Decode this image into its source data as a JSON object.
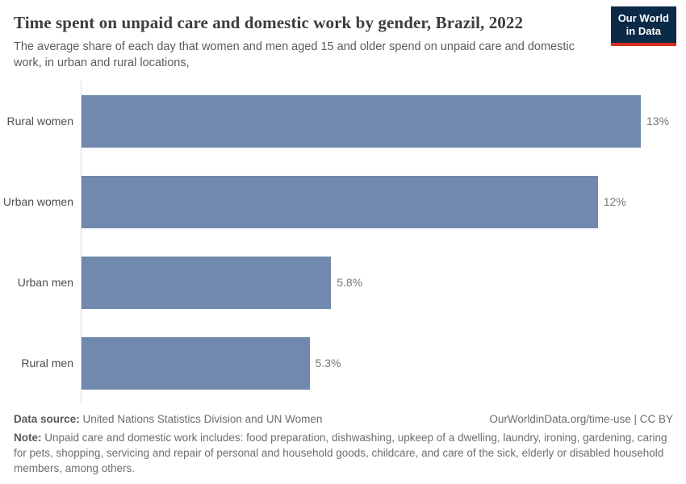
{
  "header": {
    "title": "Time spent on unpaid care and domestic work by gender, Brazil, 2022",
    "subtitle": "The average share of each day that women and men aged 15 and older spend on unpaid care and domestic work, in urban and rural locations,",
    "logo": {
      "line1": "Our World",
      "line2": "in Data"
    }
  },
  "chart_data": {
    "type": "bar",
    "orientation": "horizontal",
    "title": "Time spent on unpaid care and domestic work by gender, Brazil, 2022",
    "categories": [
      "Rural women",
      "Urban women",
      "Urban men",
      "Rural men"
    ],
    "values": [
      13,
      12,
      5.8,
      5.3
    ],
    "value_labels": [
      "13%",
      "12%",
      "5.8%",
      "5.3%"
    ],
    "unit": "%",
    "xlabel": "",
    "ylabel": "",
    "xlim": [
      0,
      13.75
    ],
    "grid": false,
    "legend": "none"
  },
  "footer": {
    "source_label": "Data source:",
    "source_text": "United Nations Statistics Division and UN Women",
    "license": "OurWorldinData.org/time-use | CC BY",
    "note_label": "Note:",
    "note_text": "Unpaid care and domestic work includes: food preparation, dishwashing, upkeep of a dwelling, laundry, ironing, gardening, caring for pets, shopping, servicing and repair of personal and household goods, childcare, and care of the sick, elderly or disabled household members, among others."
  },
  "colors": {
    "bar": "#7289ae",
    "logo_bg": "#0b2a48",
    "logo_accent": "#d42b22",
    "axis_line": "#dcdcdc",
    "title_text": "#3d3d3d",
    "body_text": "#5b5b5b"
  }
}
